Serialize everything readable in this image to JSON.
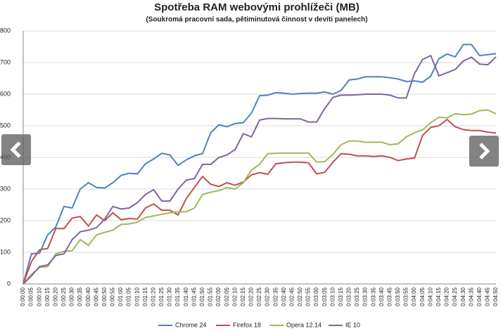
{
  "chart_data": {
    "type": "line",
    "title": "Spotřeba RAM webovými prohlížeči (MB)",
    "subtitle": "(Soukromá pracovní sada, pětiminutová činnost v devíti panelech)",
    "categories": [
      "0:00:00",
      "0:00:05",
      "0:00:10",
      "0:00:15",
      "0:00:20",
      "0:00:25",
      "0:00:30",
      "0:00:35",
      "0:00:40",
      "0:00:45",
      "0:00:50",
      "0:00:55",
      "0:01:00",
      "0:01:05",
      "0:01:10",
      "0:01:15",
      "0:01:20",
      "0:01:25",
      "0:01:30",
      "0:01:35",
      "0:01:40",
      "0:01:45",
      "0:01:50",
      "0:01:55",
      "0:02:00",
      "0:02:05",
      "0:02:10",
      "0:02:15",
      "0:02:20",
      "0:02:25",
      "0:02:30",
      "0:02:35",
      "0:02:40",
      "0:02:45",
      "0:02:50",
      "0:02:55",
      "0:03:00",
      "0:03:05",
      "0:03:10",
      "0:03:15",
      "0:03:20",
      "0:03:25",
      "0:03:30",
      "0:03:35",
      "0:03:40",
      "0:03:45",
      "0:03:50",
      "0:03:55",
      "0:04:00",
      "0:04:05",
      "0:04:10",
      "0:04:15",
      "0:04:20",
      "0:04:25",
      "0:04:30",
      "0:04:35",
      "0:04:40",
      "0:04:45",
      "0:04:50"
    ],
    "series": [
      {
        "name": "Chrome 24",
        "color": "#4f81bd",
        "values": [
          0,
          95,
          97,
          155,
          180,
          245,
          240,
          300,
          320,
          305,
          303,
          320,
          343,
          350,
          348,
          380,
          395,
          413,
          408,
          375,
          392,
          405,
          412,
          478,
          503,
          497,
          507,
          510,
          540,
          595,
          597,
          605,
          603,
          600,
          602,
          603,
          603,
          607,
          600,
          612,
          645,
          648,
          655,
          655,
          655,
          652,
          648,
          640,
          642,
          638,
          657,
          712,
          727,
          718,
          757,
          757,
          722,
          725,
          728
        ]
      },
      {
        "name": "Firefox 18",
        "color": "#c0504d",
        "values": [
          0,
          70,
          108,
          112,
          175,
          175,
          208,
          213,
          183,
          218,
          200,
          225,
          203,
          207,
          205,
          240,
          253,
          233,
          233,
          218,
          270,
          305,
          340,
          315,
          308,
          320,
          312,
          322,
          345,
          352,
          347,
          380,
          383,
          385,
          385,
          383,
          348,
          353,
          385,
          412,
          410,
          405,
          405,
          403,
          405,
          400,
          390,
          395,
          398,
          470,
          495,
          500,
          520,
          497,
          488,
          485,
          485,
          480,
          477
        ]
      },
      {
        "name": "Opera 12.14",
        "color": "#9bbb59",
        "values": [
          0,
          30,
          52,
          55,
          95,
          103,
          105,
          140,
          122,
          155,
          163,
          170,
          188,
          190,
          195,
          210,
          215,
          220,
          225,
          228,
          228,
          240,
          283,
          290,
          295,
          305,
          300,
          320,
          360,
          378,
          412,
          413,
          414,
          414,
          414,
          414,
          385,
          387,
          410,
          440,
          452,
          452,
          448,
          448,
          448,
          440,
          443,
          465,
          478,
          487,
          510,
          527,
          525,
          538,
          535,
          537,
          548,
          550,
          538
        ]
      },
      {
        "name": "IE 10",
        "color": "#8064a2",
        "values": [
          0,
          25,
          55,
          60,
          90,
          95,
          140,
          165,
          170,
          178,
          205,
          245,
          237,
          240,
          257,
          283,
          298,
          262,
          262,
          300,
          328,
          333,
          378,
          378,
          400,
          408,
          425,
          475,
          465,
          518,
          523,
          523,
          522,
          522,
          522,
          512,
          512,
          555,
          590,
          597,
          597,
          598,
          600,
          600,
          600,
          597,
          588,
          588,
          665,
          710,
          722,
          658,
          668,
          678,
          705,
          717,
          695,
          693,
          718
        ]
      }
    ],
    "ylim": [
      0,
      800
    ],
    "yticks": [
      0,
      100,
      200,
      300,
      400,
      500,
      600,
      700,
      800
    ],
    "grid": true
  }
}
